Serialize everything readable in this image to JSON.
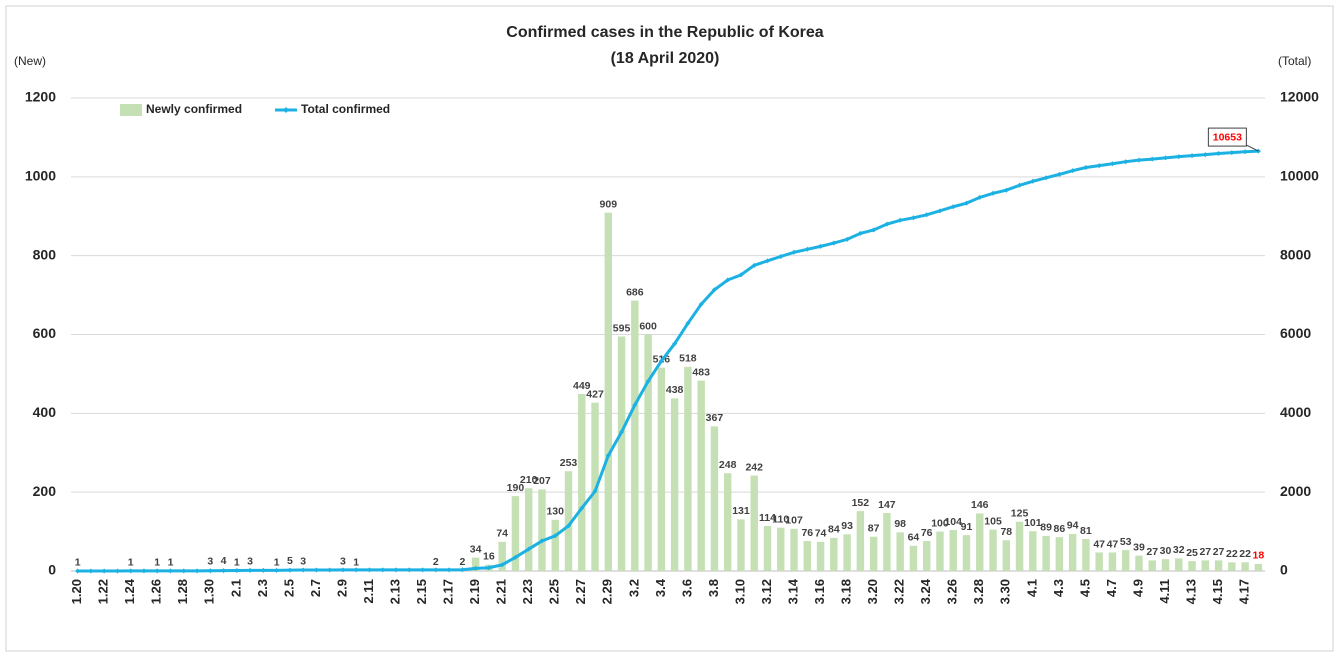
{
  "chart_data": {
    "type": "combo",
    "title": "Confirmed cases in the Republic of Korea",
    "subtitle": "(18 April 2020)",
    "y_label": "(New)",
    "y2_label": "(Total)",
    "categories": [
      "1.20",
      null,
      "1.22",
      null,
      "1.24",
      null,
      "1.26",
      null,
      "1.28",
      null,
      "1.30",
      null,
      "2.1",
      null,
      "2.3",
      null,
      "2.5",
      null,
      "2.7",
      null,
      "2.9",
      null,
      "2.11",
      null,
      "2.13",
      null,
      "2.15",
      null,
      "2.17",
      null,
      "2.19",
      null,
      "2.21",
      null,
      "2.23",
      null,
      "2.25",
      null,
      "2.27",
      null,
      "2.29",
      null,
      "3.2",
      null,
      "3.4",
      null,
      "3.6",
      null,
      "3.8",
      null,
      "3.10",
      null,
      "3.12",
      null,
      "3.14",
      null,
      "3.16",
      null,
      "3.18",
      null,
      "3.20",
      null,
      "3.22",
      null,
      "3.24",
      null,
      "3.26",
      null,
      "3.28",
      null,
      "3.30",
      null,
      "4.1",
      null,
      "4.3",
      null,
      "4.5",
      null,
      "4.7",
      null,
      "4.9",
      null,
      "4.11",
      null,
      "4.13",
      null,
      "4.15",
      null,
      "4.17",
      null
    ],
    "series": [
      {
        "name": "Newly confirmed",
        "type": "bar",
        "color": "#c5e0b4",
        "values": [
          1,
          0,
          0,
          0,
          1,
          0,
          1,
          1,
          0,
          0,
          3,
          4,
          1,
          3,
          0,
          1,
          5,
          3,
          0,
          0,
          3,
          1,
          0,
          0,
          0,
          0,
          0,
          2,
          0,
          2,
          34,
          16,
          74,
          190,
          210,
          207,
          130,
          253,
          449,
          427,
          909,
          595,
          686,
          600,
          516,
          438,
          518,
          483,
          367,
          248,
          131,
          242,
          114,
          110,
          107,
          76,
          74,
          84,
          93,
          152,
          87,
          147,
          98,
          64,
          76,
          100,
          104,
          91,
          146,
          105,
          78,
          125,
          101,
          89,
          86,
          94,
          81,
          47,
          47,
          53,
          39,
          27,
          30,
          32,
          25,
          27,
          27,
          22,
          22,
          18
        ]
      },
      {
        "name": "Total confirmed",
        "type": "line",
        "axis": "y2",
        "color": "#1cb1e3",
        "values": [
          1,
          1,
          1,
          1,
          2,
          2,
          3,
          4,
          4,
          4,
          7,
          11,
          12,
          15,
          15,
          16,
          21,
          24,
          24,
          24,
          27,
          28,
          28,
          28,
          28,
          28,
          28,
          30,
          30,
          32,
          66,
          82,
          156,
          346,
          556,
          763,
          893,
          1146,
          1595,
          2022,
          2931,
          3526,
          4212,
          4812,
          5328,
          5766,
          6284,
          6767,
          7134,
          7382,
          7513,
          7755,
          7869,
          7979,
          8086,
          8162,
          8236,
          8320,
          8413,
          8565,
          8652,
          8799,
          8897,
          8961,
          9037,
          9137,
          9241,
          9332,
          9478,
          9583,
          9661,
          9786,
          9887,
          9976,
          10062,
          10156,
          10237,
          10284,
          10331,
          10384,
          10423,
          10450,
          10480,
          10512,
          10537,
          10564,
          10591,
          10613,
          10635,
          10653
        ]
      }
    ],
    "ylim": [
      0,
      1200
    ],
    "yticks": [
      0,
      200,
      400,
      600,
      800,
      1000,
      1200
    ],
    "y2lim": [
      0,
      12000
    ],
    "y2ticks": [
      0,
      2000,
      4000,
      6000,
      8000,
      10000,
      12000
    ],
    "grid": true,
    "legend": "top-left",
    "highlight_color": "#ff0000"
  }
}
